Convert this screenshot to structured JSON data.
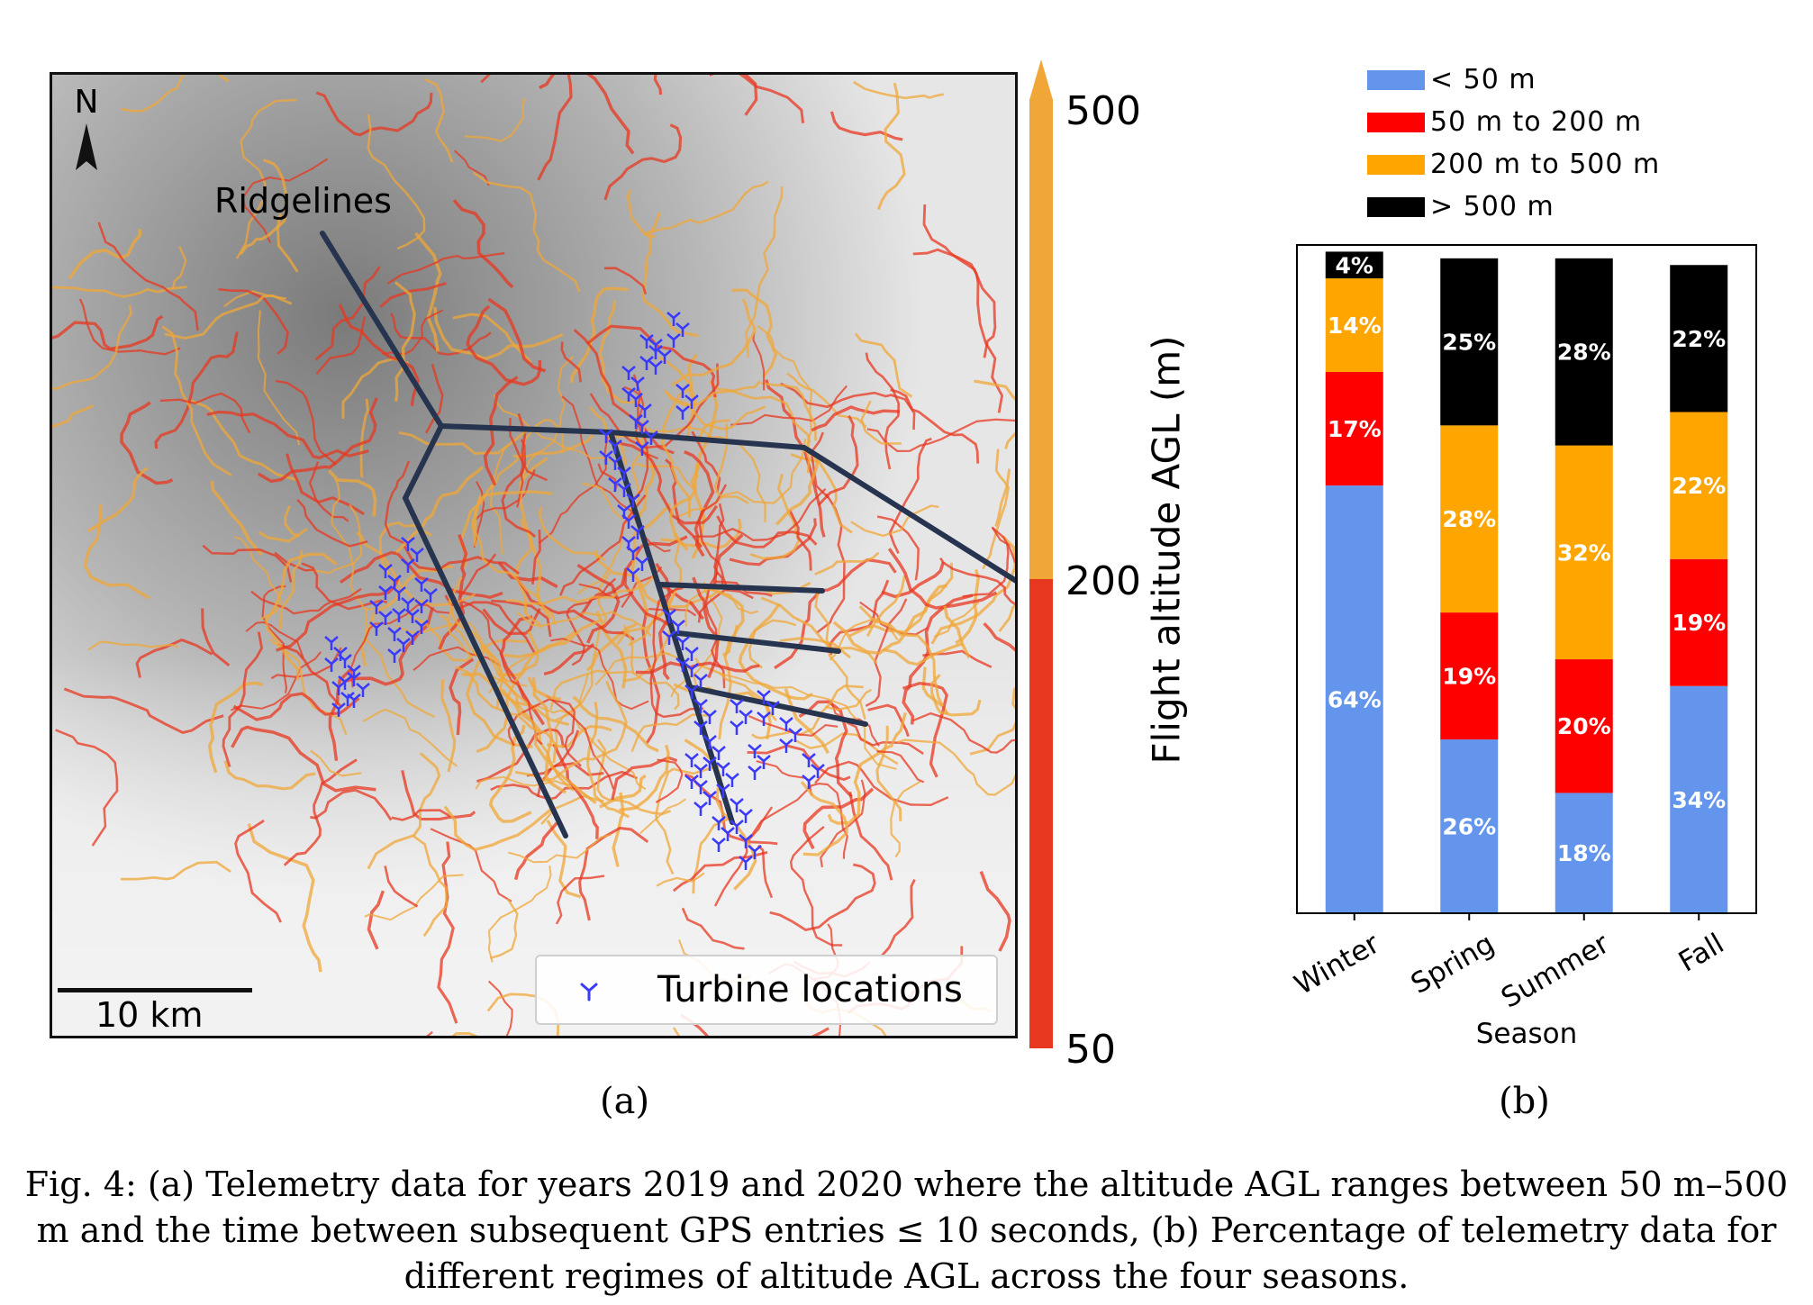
{
  "figure": {
    "panel_a": {
      "north_label": "N",
      "ridgelines_label": "Ridgelines",
      "scale_bar_label": "10 km",
      "legend_label": "Turbine locations",
      "colorbar": {
        "label": "Flight altitude AGL (m)",
        "ticks": [
          "500",
          "200",
          "50"
        ],
        "colors": {
          "low": "#e8371f",
          "high": "#f0a738"
        }
      },
      "sublabel": "(a)"
    },
    "panel_b": {
      "sublabel": "(b)"
    },
    "caption": "Fig. 4: (a) Telemetry data for years 2019 and 2020 where the altitude AGL ranges between 50 m–500 m and the time between subsequent GPS entries ≤ 10 seconds, (b) Percentage of telemetry data for different regimes of altitude AGL across the four seasons."
  },
  "chart_data": {
    "type": "bar",
    "stacked": true,
    "categories": [
      "Winter",
      "Spring",
      "Summer",
      "Fall"
    ],
    "xlabel": "Season",
    "ylabel": "",
    "ylim": [
      0,
      100
    ],
    "legend_position": "top",
    "series": [
      {
        "name": "< 50 m",
        "color": "#6495ed",
        "values": [
          64,
          26,
          18,
          34
        ],
        "labels": [
          "64%",
          "26%",
          "18%",
          "34%"
        ]
      },
      {
        "name": "50 m to 200 m",
        "color": "#ff0000",
        "values": [
          17,
          19,
          20,
          19
        ],
        "labels": [
          "17%",
          "19%",
          "20%",
          "19%"
        ]
      },
      {
        "name": "200 m to 500 m",
        "color": "#ffa500",
        "values": [
          14,
          28,
          32,
          22
        ],
        "labels": [
          "14%",
          "28%",
          "32%",
          "22%"
        ]
      },
      {
        "name": "> 500 m",
        "color": "#000000",
        "values": [
          4,
          25,
          28,
          22
        ],
        "labels": [
          "4%",
          "25%",
          "28%",
          "22%"
        ]
      }
    ]
  }
}
